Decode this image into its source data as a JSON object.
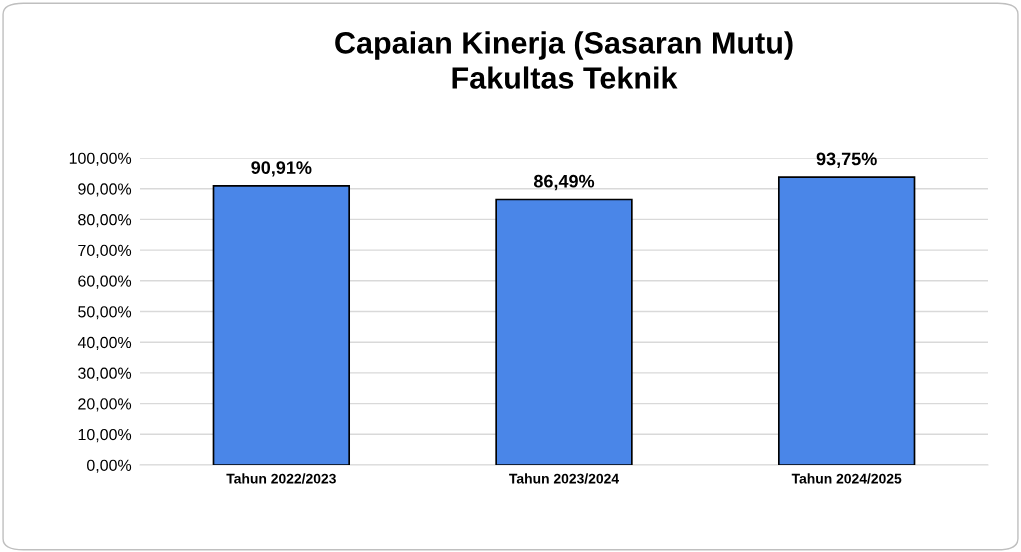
{
  "chart_data": {
    "type": "bar",
    "title": "Capaian Kinerja (Sasaran Mutu)\nFakultas Teknik",
    "categories": [
      "Tahun 2022/2023",
      "Tahun 2023/2024",
      "Tahun 2024/2025"
    ],
    "values": [
      90.91,
      86.49,
      93.75
    ],
    "value_labels": [
      "90,91%",
      "86,49%",
      "93,75%"
    ],
    "color": "#4a86e8",
    "ylim": [
      0,
      100
    ],
    "yticks": [
      {
        "value": 0,
        "label": "0,00%"
      },
      {
        "value": 10,
        "label": "10,00%"
      },
      {
        "value": 20,
        "label": "20,00%"
      },
      {
        "value": 30,
        "label": "30,00%"
      },
      {
        "value": 40,
        "label": "40,00%"
      },
      {
        "value": 50,
        "label": "50,00%"
      },
      {
        "value": 60,
        "label": "60,00%"
      },
      {
        "value": 70,
        "label": "70,00%"
      },
      {
        "value": 80,
        "label": "80,00%"
      },
      {
        "value": 90,
        "label": "90,00%"
      },
      {
        "value": 100,
        "label": "100,00%"
      }
    ],
    "grid": "y"
  }
}
